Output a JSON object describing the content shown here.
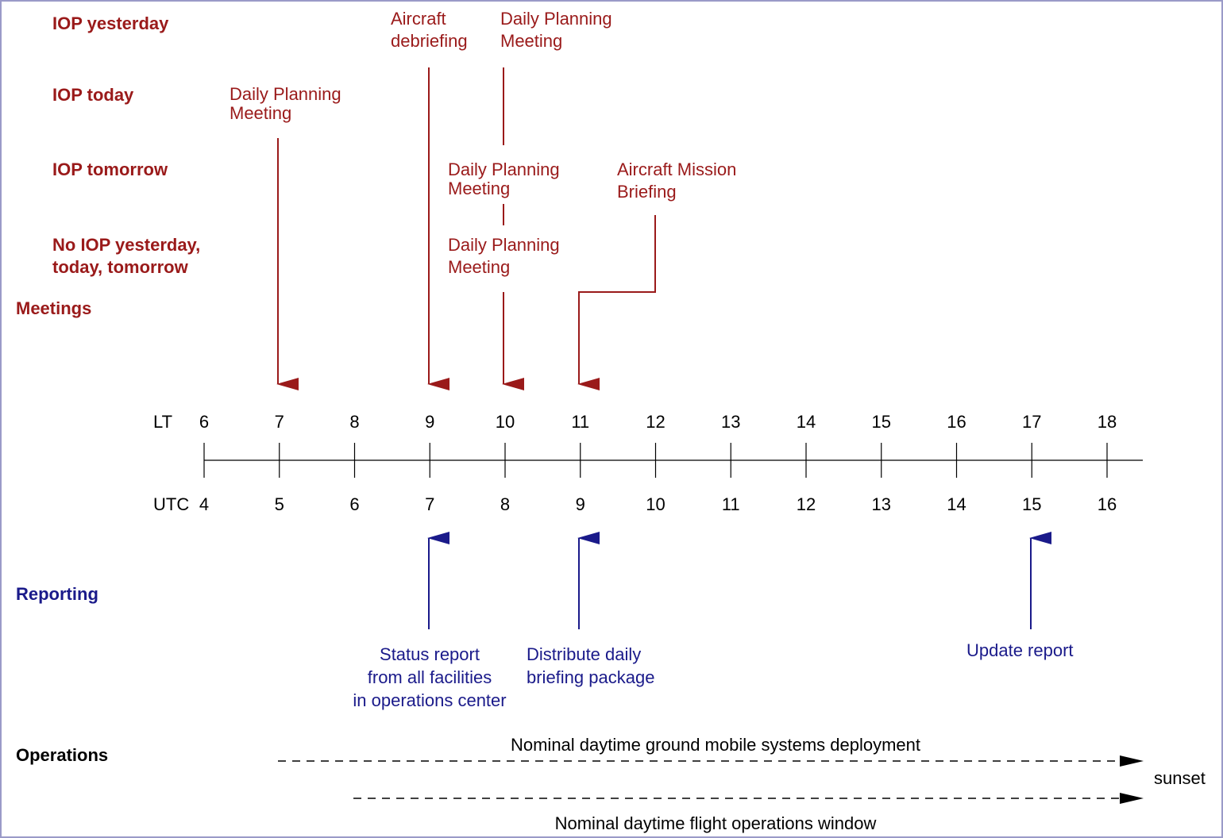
{
  "colors": {
    "meeting": "#9a1a1a",
    "reporting": "#1a1a8a",
    "neutral": "#000000",
    "frame": "#9a9ac8"
  },
  "sections": {
    "meetings": "Meetings",
    "reporting": "Reporting",
    "operations": "Operations"
  },
  "iop_rows": {
    "yesterday": "IOP yesterday",
    "today": "IOP today",
    "tomorrow": "IOP tomorrow",
    "none_line1": "No IOP yesterday,",
    "none_line2": "today, tomorrow"
  },
  "meetings": {
    "debrief": [
      "Aircraft",
      "debriefing"
    ],
    "dpm_yesterday": [
      "Daily Planning",
      "Meeting"
    ],
    "dpm_today": [
      "Daily Planning",
      "Meeting"
    ],
    "dpm_tomorrow": [
      "Daily Planning",
      "Meeting"
    ],
    "dpm_none": [
      "Daily Planning",
      "Meeting"
    ],
    "mission_briefing": [
      "Aircraft Mission",
      "Briefing"
    ]
  },
  "timeline": {
    "lt_label": "LT",
    "utc_label": "UTC",
    "lt_hours": [
      "6",
      "7",
      "8",
      "9",
      "10",
      "11",
      "12",
      "13",
      "14",
      "15",
      "16",
      "17",
      "18"
    ],
    "utc_hours": [
      "4",
      "5",
      "6",
      "7",
      "8",
      "9",
      "10",
      "11",
      "12",
      "13",
      "14",
      "15",
      "16"
    ]
  },
  "reporting": {
    "status": [
      "Status report",
      "from all facilities",
      "in operations center"
    ],
    "distribute": [
      "Distribute daily",
      "briefing package"
    ],
    "update": [
      "Update report"
    ]
  },
  "operations": {
    "ground": "Nominal daytime ground mobile systems deployment",
    "flight": "Nominal daytime flight operations window",
    "sunset": "sunset"
  }
}
